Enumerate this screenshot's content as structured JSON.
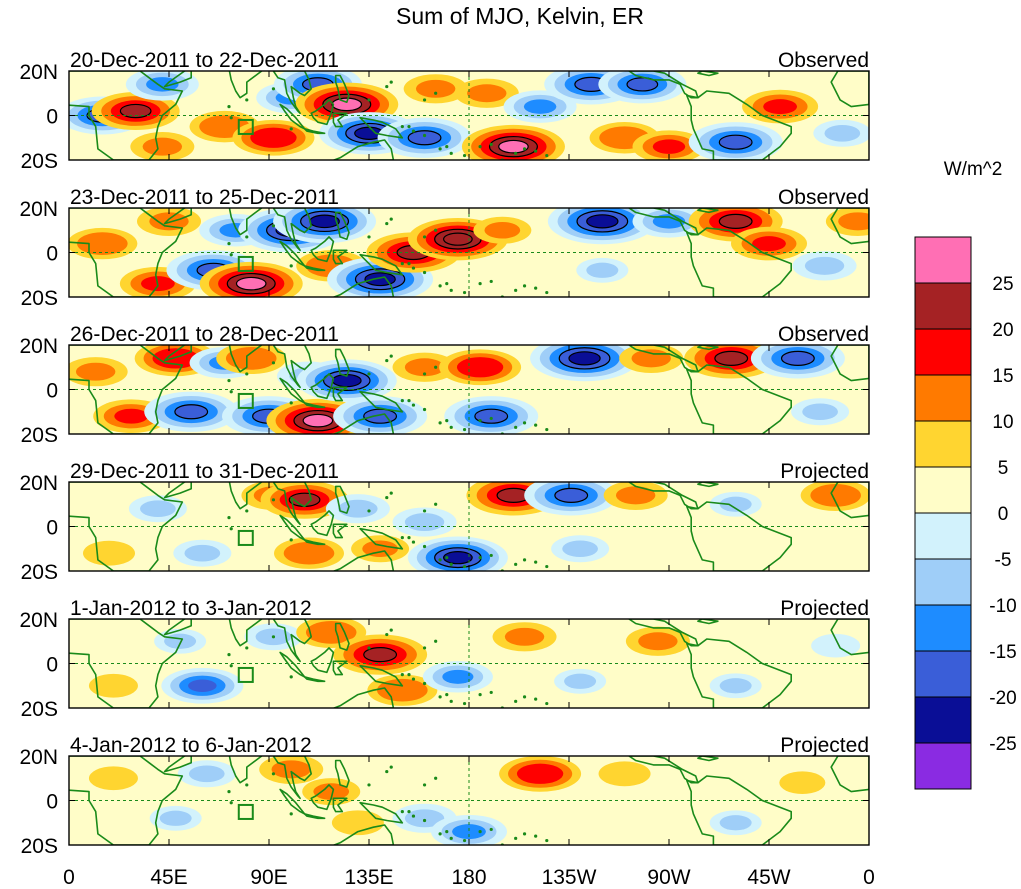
{
  "chart_data": {
    "type": "heatmap",
    "title": "Sum of MJO, Kelvin, ER",
    "units_label": "W/m^2",
    "x_tick_labels": [
      "0",
      "45E",
      "90E",
      "135E",
      "180",
      "135W",
      "90W",
      "45W",
      "0"
    ],
    "x_range_deg_east": [
      0,
      360
    ],
    "y_tick_labels": [
      "20N",
      "0",
      "20S"
    ],
    "y_range_deg": [
      -20,
      20
    ],
    "colorbar": {
      "labels": [
        "25",
        "20",
        "15",
        "10",
        "5",
        "0",
        "-5",
        "-10",
        "-15",
        "-20",
        "-25"
      ],
      "levels": [
        25,
        20,
        15,
        10,
        5,
        0,
        -5,
        -10,
        -15,
        -20,
        -25
      ],
      "colors": [
        "#ff6fb4",
        "#a52224",
        "#ff0000",
        "#ff7a00",
        "#ffd530",
        "#fffdc8",
        "#d2f2fc",
        "#9fcef8",
        "#1e8cff",
        "#3a5ed8",
        "#0a0e96",
        "#8a2be2"
      ]
    },
    "panels": [
      {
        "date_range": "20-Dec-2011 to 22-Dec-2011",
        "status": "Observed",
        "anomalies": [
          {
            "lon": 15,
            "lat": 0,
            "value": -20
          },
          {
            "lon": 30,
            "lat": 2,
            "value": 20
          },
          {
            "lon": 42,
            "lat": 14,
            "value": -15
          },
          {
            "lon": 42,
            "lat": -14,
            "value": 12
          },
          {
            "lon": 70,
            "lat": -5,
            "value": 14
          },
          {
            "lon": 92,
            "lat": -10,
            "value": 18
          },
          {
            "lon": 100,
            "lat": 8,
            "value": -14
          },
          {
            "lon": 112,
            "lat": 14,
            "value": -20
          },
          {
            "lon": 125,
            "lat": 5,
            "value": 25
          },
          {
            "lon": 135,
            "lat": -8,
            "value": -24
          },
          {
            "lon": 160,
            "lat": -10,
            "value": -22
          },
          {
            "lon": 165,
            "lat": 12,
            "value": 12
          },
          {
            "lon": 188,
            "lat": 10,
            "value": 12
          },
          {
            "lon": 200,
            "lat": -14,
            "value": 25
          },
          {
            "lon": 212,
            "lat": 4,
            "value": -15
          },
          {
            "lon": 235,
            "lat": 14,
            "value": -22
          },
          {
            "lon": 258,
            "lat": 14,
            "value": -20
          },
          {
            "lon": 250,
            "lat": -10,
            "value": 14
          },
          {
            "lon": 270,
            "lat": -14,
            "value": 15
          },
          {
            "lon": 300,
            "lat": -12,
            "value": -22
          },
          {
            "lon": 320,
            "lat": 4,
            "value": 16
          },
          {
            "lon": 348,
            "lat": -8,
            "value": -10
          }
        ]
      },
      {
        "date_range": "23-Dec-2011 to 25-Dec-2011",
        "status": "Observed",
        "anomalies": [
          {
            "lon": 15,
            "lat": 4,
            "value": 14
          },
          {
            "lon": 40,
            "lat": -14,
            "value": 16
          },
          {
            "lon": 45,
            "lat": 14,
            "value": 12
          },
          {
            "lon": 65,
            "lat": -8,
            "value": -22
          },
          {
            "lon": 75,
            "lat": 10,
            "value": -15
          },
          {
            "lon": 82,
            "lat": -14,
            "value": 25
          },
          {
            "lon": 100,
            "lat": 10,
            "value": -26
          },
          {
            "lon": 115,
            "lat": 14,
            "value": -25
          },
          {
            "lon": 118,
            "lat": -6,
            "value": 14
          },
          {
            "lon": 140,
            "lat": -12,
            "value": -26
          },
          {
            "lon": 155,
            "lat": 0,
            "value": 22
          },
          {
            "lon": 175,
            "lat": 6,
            "value": 24
          },
          {
            "lon": 195,
            "lat": 10,
            "value": 10
          },
          {
            "lon": 240,
            "lat": 14,
            "value": -27
          },
          {
            "lon": 240,
            "lat": -8,
            "value": -8
          },
          {
            "lon": 270,
            "lat": 14,
            "value": -15
          },
          {
            "lon": 300,
            "lat": 14,
            "value": 22
          },
          {
            "lon": 315,
            "lat": 4,
            "value": 16
          },
          {
            "lon": 340,
            "lat": -6,
            "value": -12
          },
          {
            "lon": 355,
            "lat": 14,
            "value": 12
          }
        ]
      },
      {
        "date_range": "26-Dec-2011 to 28-Dec-2011",
        "status": "Observed",
        "anomalies": [
          {
            "lon": 12,
            "lat": 8,
            "value": 12
          },
          {
            "lon": 28,
            "lat": -12,
            "value": 16
          },
          {
            "lon": 48,
            "lat": 14,
            "value": 18
          },
          {
            "lon": 55,
            "lat": -10,
            "value": -22
          },
          {
            "lon": 70,
            "lat": 12,
            "value": -14
          },
          {
            "lon": 82,
            "lat": 14,
            "value": 14
          },
          {
            "lon": 90,
            "lat": -12,
            "value": -22
          },
          {
            "lon": 108,
            "lat": 6,
            "value": -12
          },
          {
            "lon": 112,
            "lat": -14,
            "value": 25
          },
          {
            "lon": 125,
            "lat": 4,
            "value": -24
          },
          {
            "lon": 140,
            "lat": -12,
            "value": -22
          },
          {
            "lon": 160,
            "lat": 10,
            "value": 12
          },
          {
            "lon": 185,
            "lat": 10,
            "value": 18
          },
          {
            "lon": 190,
            "lat": -12,
            "value": -22
          },
          {
            "lon": 232,
            "lat": 14,
            "value": -27
          },
          {
            "lon": 262,
            "lat": 14,
            "value": 12
          },
          {
            "lon": 298,
            "lat": 14,
            "value": 22
          },
          {
            "lon": 328,
            "lat": 14,
            "value": -22
          },
          {
            "lon": 338,
            "lat": -10,
            "value": -10
          }
        ]
      },
      {
        "date_range": "29-Dec-2011 to 31-Dec-2011",
        "status": "Projected",
        "anomalies": [
          {
            "lon": 18,
            "lat": -12,
            "value": 8
          },
          {
            "lon": 40,
            "lat": 8,
            "value": -10
          },
          {
            "lon": 60,
            "lat": -12,
            "value": -10
          },
          {
            "lon": 92,
            "lat": 14,
            "value": 12
          },
          {
            "lon": 106,
            "lat": 12,
            "value": 20
          },
          {
            "lon": 108,
            "lat": -12,
            "value": 14
          },
          {
            "lon": 130,
            "lat": 8,
            "value": -12
          },
          {
            "lon": 140,
            "lat": -10,
            "value": 10
          },
          {
            "lon": 160,
            "lat": 2,
            "value": -12
          },
          {
            "lon": 175,
            "lat": -14,
            "value": -24
          },
          {
            "lon": 200,
            "lat": 14,
            "value": 22
          },
          {
            "lon": 226,
            "lat": 14,
            "value": -22
          },
          {
            "lon": 255,
            "lat": 14,
            "value": 12
          },
          {
            "lon": 230,
            "lat": -10,
            "value": -10
          },
          {
            "lon": 300,
            "lat": 10,
            "value": -8
          },
          {
            "lon": 345,
            "lat": 14,
            "value": 14
          }
        ]
      },
      {
        "date_range": "1-Jan-2012 to 3-Jan-2012",
        "status": "Projected",
        "anomalies": [
          {
            "lon": 20,
            "lat": -10,
            "value": 7
          },
          {
            "lon": 50,
            "lat": 10,
            "value": -8
          },
          {
            "lon": 60,
            "lat": -10,
            "value": -18
          },
          {
            "lon": 92,
            "lat": 12,
            "value": -10
          },
          {
            "lon": 118,
            "lat": 14,
            "value": 14
          },
          {
            "lon": 140,
            "lat": 4,
            "value": 22
          },
          {
            "lon": 150,
            "lat": -12,
            "value": 14
          },
          {
            "lon": 175,
            "lat": -6,
            "value": -14
          },
          {
            "lon": 205,
            "lat": 12,
            "value": 12
          },
          {
            "lon": 230,
            "lat": -8,
            "value": -8
          },
          {
            "lon": 265,
            "lat": 10,
            "value": 12
          },
          {
            "lon": 300,
            "lat": -10,
            "value": -8
          },
          {
            "lon": 345,
            "lat": 8,
            "value": -7
          }
        ]
      },
      {
        "date_range": "4-Jan-2012 to 6-Jan-2012",
        "status": "Projected",
        "anomalies": [
          {
            "lon": 20,
            "lat": 10,
            "value": 7
          },
          {
            "lon": 48,
            "lat": -8,
            "value": -8
          },
          {
            "lon": 62,
            "lat": 12,
            "value": -10
          },
          {
            "lon": 100,
            "lat": 14,
            "value": 12
          },
          {
            "lon": 118,
            "lat": 4,
            "value": 10
          },
          {
            "lon": 130,
            "lat": -10,
            "value": 8
          },
          {
            "lon": 160,
            "lat": -8,
            "value": -12
          },
          {
            "lon": 180,
            "lat": -14,
            "value": -16
          },
          {
            "lon": 212,
            "lat": 12,
            "value": 18
          },
          {
            "lon": 250,
            "lat": 12,
            "value": 8
          },
          {
            "lon": 300,
            "lat": -10,
            "value": -8
          },
          {
            "lon": 330,
            "lat": 8,
            "value": 6
          }
        ]
      }
    ]
  }
}
